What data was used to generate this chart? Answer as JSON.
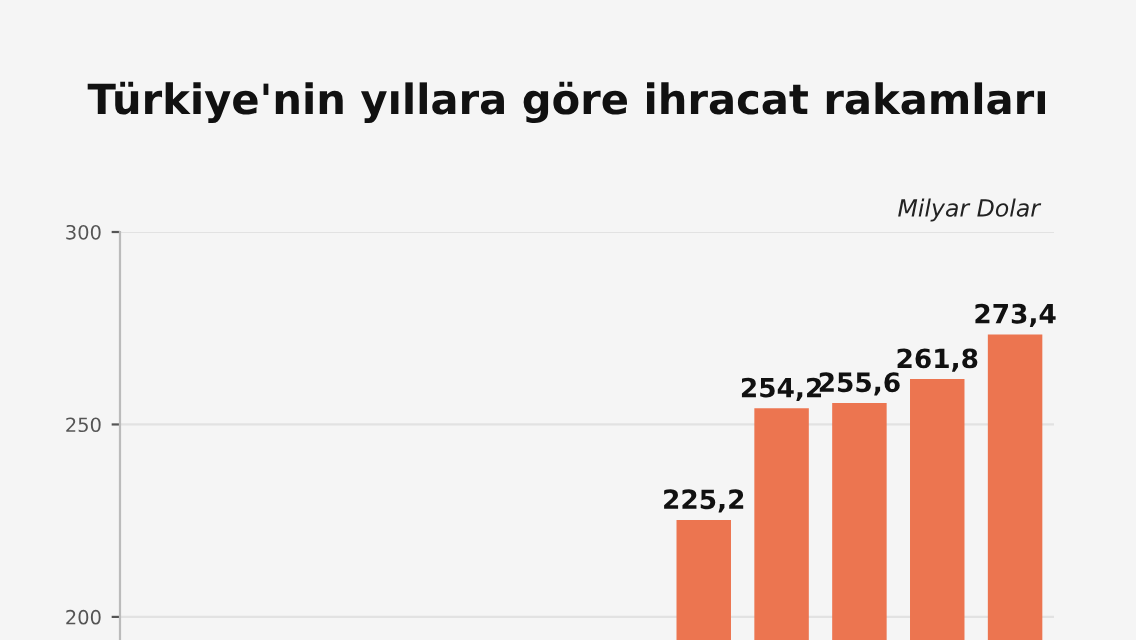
{
  "chart_data": {
    "type": "bar",
    "title": "Türkiye'nin yıllara göre ihracat rakamları",
    "annotations": [
      "Milyar Dolar"
    ],
    "categories": [
      null,
      null,
      null,
      null,
      null,
      null,
      null,
      null,
      null,
      null,
      null,
      null
    ],
    "values": [
      null,
      null,
      null,
      null,
      null,
      null,
      null,
      225.2,
      254.2,
      255.6,
      261.8,
      273.4
    ],
    "value_labels": [
      null,
      null,
      null,
      null,
      null,
      null,
      null,
      "225,2",
      "254,2",
      "255,6",
      "261,8",
      "273,4"
    ],
    "color": "#ec7550",
    "ylim": [
      194,
      300
    ],
    "yticks": [
      200,
      250,
      300
    ],
    "grid": "y",
    "tick_labels": "y"
  }
}
